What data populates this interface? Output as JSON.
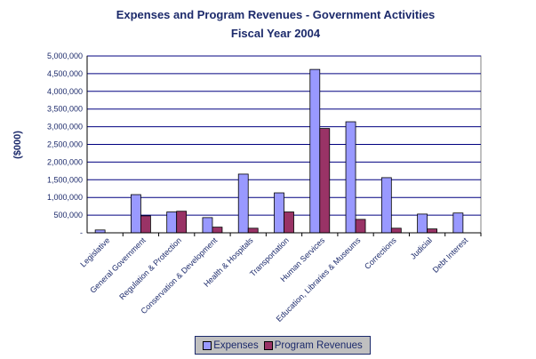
{
  "chart_data": {
    "type": "bar",
    "title": "Expenses and Program Revenues - Government Activities",
    "subtitle": "Fiscal Year 2004",
    "ylabel": "($000)",
    "xlabel": "",
    "ylim": [
      0,
      5000000
    ],
    "yticks": [
      "-",
      "500,000",
      "1,000,000",
      "1,500,000",
      "2,000,000",
      "2,500,000",
      "3,000,000",
      "3,500,000",
      "4,000,000",
      "4,500,000",
      "5,000,000"
    ],
    "grid": true,
    "legend_position": "bottom",
    "categories": [
      "Legislative",
      "General Government",
      "Regulation & Protection",
      "Conservation & Development",
      "Health & Hospitals",
      "Transportation",
      "Human Services",
      "Education, Libraries & Museums",
      "Corrections",
      "Judicial",
      "Debt Interest"
    ],
    "series": [
      {
        "name": "Expenses",
        "color": "#9999ff",
        "values": [
          80000,
          1080000,
          590000,
          430000,
          1660000,
          1130000,
          4620000,
          3140000,
          1560000,
          530000,
          560000
        ]
      },
      {
        "name": "Program Revenues",
        "color": "#993366",
        "values": [
          null,
          480000,
          610000,
          160000,
          130000,
          590000,
          2950000,
          380000,
          130000,
          110000,
          null
        ]
      }
    ]
  }
}
